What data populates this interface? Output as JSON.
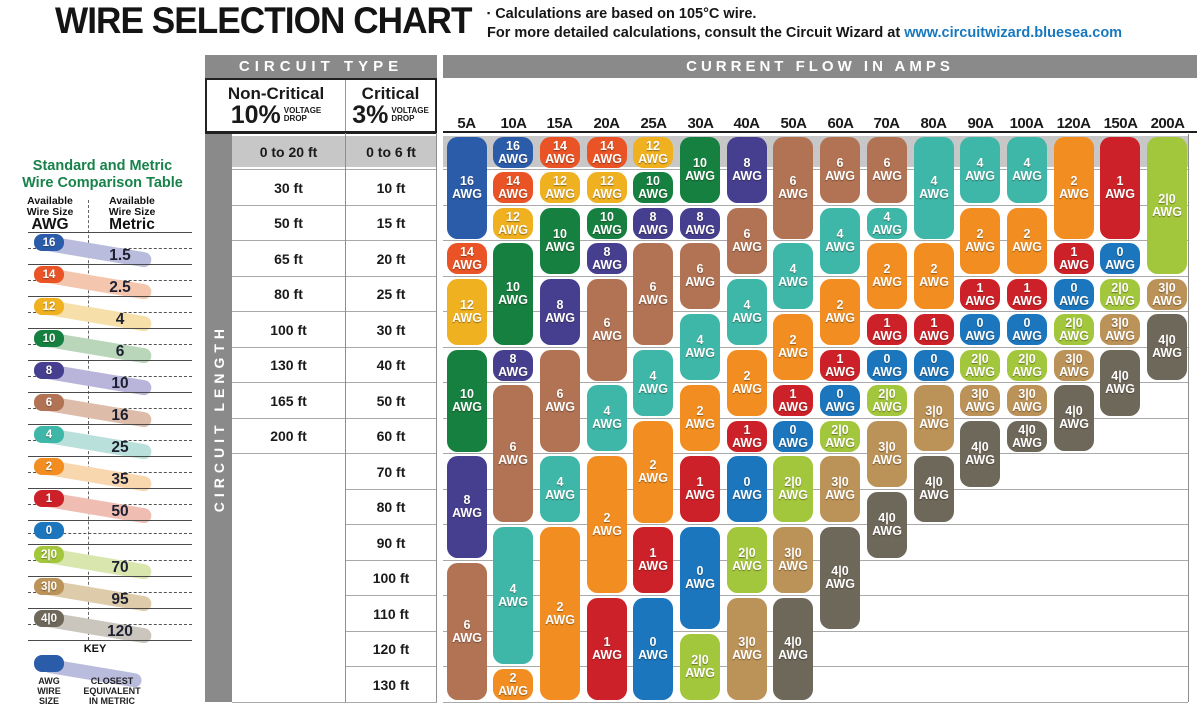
{
  "header": {
    "title": "WIRE SELECTION CHART",
    "note1": "Calculations are based on 105°C wire.",
    "note2_prefix": "For more detailed calculations, consult the Circuit Wizard at ",
    "note2_link": "www.circuitwizard.bluesea.com"
  },
  "table_headers": {
    "circuit_type": "CIRCUIT TYPE",
    "current_flow": "CURRENT FLOW IN AMPS",
    "circuit_length": "CIRCUIT LENGTH",
    "non_critical_label": "Non-Critical",
    "non_critical_pct": "10%",
    "critical_label": "Critical",
    "critical_pct": "3%",
    "voltage": "VOLTAGE",
    "drop": "DROP"
  },
  "chart_data": {
    "type": "table",
    "title": "WIRE SELECTION CHART",
    "x_axis_label": "CURRENT FLOW IN AMPS",
    "y_axis_label": "CIRCUIT LENGTH",
    "amps": [
      "5A",
      "10A",
      "15A",
      "20A",
      "25A",
      "30A",
      "40A",
      "50A",
      "60A",
      "70A",
      "80A",
      "90A",
      "100A",
      "120A",
      "150A",
      "200A"
    ],
    "lengths_non_critical": [
      "0 to 20 ft",
      "30 ft",
      "50 ft",
      "65 ft",
      "80 ft",
      "100 ft",
      "130 ft",
      "165 ft",
      "200 ft",
      "",
      "",
      "",
      "",
      "",
      "",
      ""
    ],
    "lengths_critical": [
      "0 to 6 ft",
      "10 ft",
      "15 ft",
      "20 ft",
      "25 ft",
      "30 ft",
      "40 ft",
      "50 ft",
      "60 ft",
      "70 ft",
      "80 ft",
      "90 ft",
      "100 ft",
      "110 ft",
      "120 ft",
      "130 ft"
    ],
    "cell_unit": "AWG",
    "wire_gauge_segments": [
      {
        "amp": "5A",
        "segments": [
          {
            "awg": "16",
            "from": 0,
            "to": 2
          },
          {
            "awg": "14",
            "from": 3,
            "to": 3
          },
          {
            "awg": "12",
            "from": 4,
            "to": 5
          },
          {
            "awg": "10",
            "from": 6,
            "to": 8
          },
          {
            "awg": "8",
            "from": 9,
            "to": 11
          },
          {
            "awg": "6",
            "from": 12,
            "to": 15
          }
        ]
      },
      {
        "amp": "10A",
        "segments": [
          {
            "awg": "16",
            "from": 0,
            "to": 0
          },
          {
            "awg": "14",
            "from": 1,
            "to": 1
          },
          {
            "awg": "12",
            "from": 2,
            "to": 2
          },
          {
            "awg": "10",
            "from": 3,
            "to": 5
          },
          {
            "awg": "8",
            "from": 6,
            "to": 6
          },
          {
            "awg": "6",
            "from": 7,
            "to": 10
          },
          {
            "awg": "4",
            "from": 11,
            "to": 14
          },
          {
            "awg": "2",
            "from": 15,
            "to": 15
          }
        ]
      },
      {
        "amp": "15A",
        "segments": [
          {
            "awg": "14",
            "from": 0,
            "to": 0
          },
          {
            "awg": "12",
            "from": 1,
            "to": 1
          },
          {
            "awg": "10",
            "from": 2,
            "to": 3
          },
          {
            "awg": "8",
            "from": 4,
            "to": 5
          },
          {
            "awg": "6",
            "from": 6,
            "to": 8
          },
          {
            "awg": "4",
            "from": 9,
            "to": 10
          },
          {
            "awg": "2",
            "from": 11,
            "to": 15
          }
        ]
      },
      {
        "amp": "20A",
        "segments": [
          {
            "awg": "14",
            "from": 0,
            "to": 0
          },
          {
            "awg": "12",
            "from": 1,
            "to": 1
          },
          {
            "awg": "10",
            "from": 2,
            "to": 2
          },
          {
            "awg": "8",
            "from": 3,
            "to": 3
          },
          {
            "awg": "6",
            "from": 4,
            "to": 6
          },
          {
            "awg": "4",
            "from": 7,
            "to": 8
          },
          {
            "awg": "2",
            "from": 9,
            "to": 12
          },
          {
            "awg": "1",
            "from": 13,
            "to": 15
          }
        ]
      },
      {
        "amp": "25A",
        "segments": [
          {
            "awg": "12",
            "from": 0,
            "to": 0
          },
          {
            "awg": "10",
            "from": 1,
            "to": 1
          },
          {
            "awg": "8",
            "from": 2,
            "to": 2
          },
          {
            "awg": "6",
            "from": 3,
            "to": 5
          },
          {
            "awg": "4",
            "from": 6,
            "to": 7
          },
          {
            "awg": "2",
            "from": 8,
            "to": 10
          },
          {
            "awg": "1",
            "from": 11,
            "to": 12
          },
          {
            "awg": "0",
            "from": 13,
            "to": 15
          }
        ]
      },
      {
        "amp": "30A",
        "segments": [
          {
            "awg": "10",
            "from": 0,
            "to": 1
          },
          {
            "awg": "8",
            "from": 2,
            "to": 2
          },
          {
            "awg": "6",
            "from": 3,
            "to": 4
          },
          {
            "awg": "4",
            "from": 5,
            "to": 6
          },
          {
            "awg": "2",
            "from": 7,
            "to": 8
          },
          {
            "awg": "1",
            "from": 9,
            "to": 10
          },
          {
            "awg": "0",
            "from": 11,
            "to": 13
          },
          {
            "awg": "2|0",
            "from": 14,
            "to": 15
          }
        ]
      },
      {
        "amp": "40A",
        "segments": [
          {
            "awg": "8",
            "from": 0,
            "to": 1
          },
          {
            "awg": "6",
            "from": 2,
            "to": 3
          },
          {
            "awg": "4",
            "from": 4,
            "to": 5
          },
          {
            "awg": "2",
            "from": 6,
            "to": 7
          },
          {
            "awg": "1",
            "from": 8,
            "to": 8
          },
          {
            "awg": "0",
            "from": 9,
            "to": 10
          },
          {
            "awg": "2|0",
            "from": 11,
            "to": 12
          },
          {
            "awg": "3|0",
            "from": 13,
            "to": 15
          }
        ]
      },
      {
        "amp": "50A",
        "segments": [
          {
            "awg": "6",
            "from": 0,
            "to": 2
          },
          {
            "awg": "4",
            "from": 3,
            "to": 4
          },
          {
            "awg": "2",
            "from": 5,
            "to": 6
          },
          {
            "awg": "1",
            "from": 7,
            "to": 7
          },
          {
            "awg": "0",
            "from": 8,
            "to": 8
          },
          {
            "awg": "2|0",
            "from": 9,
            "to": 10
          },
          {
            "awg": "3|0",
            "from": 11,
            "to": 12
          },
          {
            "awg": "4|0",
            "from": 13,
            "to": 15
          }
        ]
      },
      {
        "amp": "60A",
        "segments": [
          {
            "awg": "6",
            "from": 0,
            "to": 1
          },
          {
            "awg": "4",
            "from": 2,
            "to": 3
          },
          {
            "awg": "2",
            "from": 4,
            "to": 5
          },
          {
            "awg": "1",
            "from": 6,
            "to": 6
          },
          {
            "awg": "0",
            "from": 7,
            "to": 7
          },
          {
            "awg": "2|0",
            "from": 8,
            "to": 8
          },
          {
            "awg": "3|0",
            "from": 9,
            "to": 10
          },
          {
            "awg": "4|0",
            "from": 11,
            "to": 13
          }
        ]
      },
      {
        "amp": "70A",
        "segments": [
          {
            "awg": "6",
            "from": 0,
            "to": 1
          },
          {
            "awg": "4",
            "from": 2,
            "to": 2
          },
          {
            "awg": "2",
            "from": 3,
            "to": 4
          },
          {
            "awg": "1",
            "from": 5,
            "to": 5
          },
          {
            "awg": "0",
            "from": 6,
            "to": 6
          },
          {
            "awg": "2|0",
            "from": 7,
            "to": 7
          },
          {
            "awg": "3|0",
            "from": 8,
            "to": 9
          },
          {
            "awg": "4|0",
            "from": 10,
            "to": 11
          }
        ]
      },
      {
        "amp": "80A",
        "segments": [
          {
            "awg": "4",
            "from": 0,
            "to": 2
          },
          {
            "awg": "2",
            "from": 3,
            "to": 4
          },
          {
            "awg": "1",
            "from": 5,
            "to": 5
          },
          {
            "awg": "0",
            "from": 6,
            "to": 6
          },
          {
            "awg": "3|0",
            "from": 7,
            "to": 8
          },
          {
            "awg": "4|0",
            "from": 9,
            "to": 10
          }
        ]
      },
      {
        "amp": "90A",
        "segments": [
          {
            "awg": "4",
            "from": 0,
            "to": 1
          },
          {
            "awg": "2",
            "from": 2,
            "to": 3
          },
          {
            "awg": "1",
            "from": 4,
            "to": 4
          },
          {
            "awg": "0",
            "from": 5,
            "to": 5
          },
          {
            "awg": "2|0",
            "from": 6,
            "to": 6
          },
          {
            "awg": "3|0",
            "from": 7,
            "to": 7
          },
          {
            "awg": "4|0",
            "from": 8,
            "to": 9
          }
        ]
      },
      {
        "amp": "100A",
        "segments": [
          {
            "awg": "4",
            "from": 0,
            "to": 1
          },
          {
            "awg": "2",
            "from": 2,
            "to": 3
          },
          {
            "awg": "1",
            "from": 4,
            "to": 4
          },
          {
            "awg": "0",
            "from": 5,
            "to": 5
          },
          {
            "awg": "2|0",
            "from": 6,
            "to": 6
          },
          {
            "awg": "3|0",
            "from": 7,
            "to": 7
          },
          {
            "awg": "4|0",
            "from": 8,
            "to": 8
          }
        ]
      },
      {
        "amp": "120A",
        "segments": [
          {
            "awg": "2",
            "from": 0,
            "to": 2
          },
          {
            "awg": "1",
            "from": 3,
            "to": 3
          },
          {
            "awg": "0",
            "from": 4,
            "to": 4
          },
          {
            "awg": "2|0",
            "from": 5,
            "to": 5
          },
          {
            "awg": "3|0",
            "from": 6,
            "to": 6
          },
          {
            "awg": "4|0",
            "from": 7,
            "to": 8
          }
        ]
      },
      {
        "amp": "150A",
        "segments": [
          {
            "awg": "1",
            "from": 0,
            "to": 2
          },
          {
            "awg": "0",
            "from": 3,
            "to": 3
          },
          {
            "awg": "2|0",
            "from": 4,
            "to": 4
          },
          {
            "awg": "3|0",
            "from": 5,
            "to": 5
          },
          {
            "awg": "4|0",
            "from": 6,
            "to": 7
          }
        ]
      },
      {
        "amp": "200A",
        "segments": [
          {
            "awg": "2|0",
            "from": 0,
            "to": 3
          },
          {
            "awg": "3|0",
            "from": 4,
            "to": 4
          },
          {
            "awg": "4|0",
            "from": 5,
            "to": 6
          }
        ]
      }
    ]
  },
  "awg_colors": {
    "16": "#2a5caa",
    "14": "#e95325",
    "12": "#efb120",
    "10": "#15803f",
    "8": "#463f8f",
    "6": "#b17354",
    "4": "#3eb7a8",
    "2": "#f28e21",
    "1": "#cd2129",
    "0": "#1b76bd",
    "2|0": "#a3c73c",
    "3|0": "#bb9257",
    "4|0": "#6e685b"
  },
  "awg_light_colors": {
    "16": "#b9bcdc",
    "14": "#f4c6ae",
    "12": "#f6dfa8",
    "10": "#b9d6ba",
    "8": "#b9b4d9",
    "6": "#ddbca9",
    "4": "#b9e0da",
    "2": "#f8d7ae",
    "1": "#f0bdb3",
    "2|0": "#d9e6ad",
    "3|0": "#ddcbaa",
    "4|0": "#cac6bd"
  },
  "comparison": {
    "title_line1": "Standard and Metric",
    "title_line2": "Wire Comparison Table",
    "awg_col": {
      "l1": "Available",
      "l2": "Wire Size",
      "l3": "AWG"
    },
    "metric_col": {
      "l1": "Available",
      "l2": "Wire Size",
      "l3": "Metric"
    },
    "rows": [
      {
        "awg": "16",
        "metric": "1.5"
      },
      {
        "awg": "14",
        "metric": "2.5"
      },
      {
        "awg": "12",
        "metric": "4"
      },
      {
        "awg": "10",
        "metric": "6"
      },
      {
        "awg": "8",
        "metric": "10"
      },
      {
        "awg": "6",
        "metric": "16"
      },
      {
        "awg": "4",
        "metric": "25"
      },
      {
        "awg": "2",
        "metric": "35"
      },
      {
        "awg": "1",
        "metric": "50"
      },
      {
        "awg": "0",
        "metric": ""
      },
      {
        "awg": "2|0",
        "metric": "70"
      },
      {
        "awg": "3|0",
        "metric": "95"
      },
      {
        "awg": "4|0",
        "metric": "120"
      }
    ]
  },
  "key": {
    "title": "KEY",
    "awg_label": "AWG\nWIRE\nSIZE",
    "metric_label": "CLOSEST\nEQUIVALENT\nIN METRIC",
    "awg_color": "#2a5caa",
    "metric_color": "#b9bcdc"
  },
  "colors": {
    "bar_gray": "#8a8a8a",
    "band_gray": "#c7c7c7",
    "grid_line": "#a9a9a9",
    "dark_line": "#1f1f1f",
    "link_blue": "#1878be",
    "comparison_green": "#17824a"
  }
}
